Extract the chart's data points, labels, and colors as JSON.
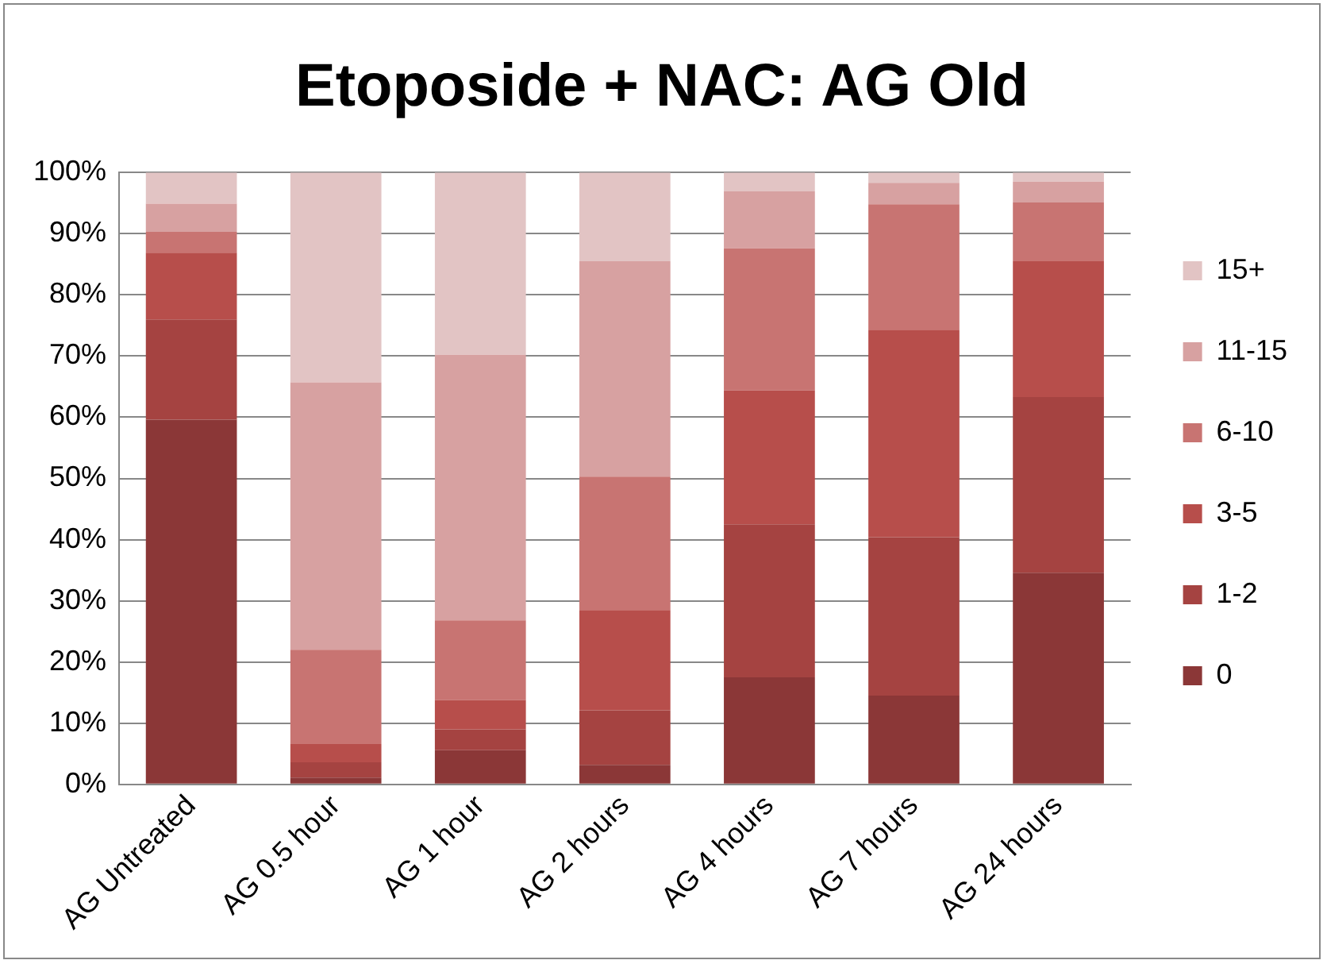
{
  "chart_data": {
    "type": "bar",
    "title": "Etoposide + NAC: AG Old",
    "stacked": true,
    "categories": [
      "AG Untreated",
      "AG 0.5 hour",
      "AG 1 hour",
      "AG 2 hours",
      "AG 4 hours",
      "AG 7 hours",
      "AG 24 hours"
    ],
    "series": [
      {
        "name": "0",
        "color": "#8b3737",
        "values": [
          59.6,
          1.1,
          5.6,
          3.2,
          17.5,
          14.5,
          34.6
        ]
      },
      {
        "name": "1-2",
        "color": "#a54341",
        "values": [
          16.4,
          2.5,
          3.4,
          8.9,
          25.0,
          25.9,
          28.7
        ]
      },
      {
        "name": "3-5",
        "color": "#b74e4b",
        "values": [
          10.9,
          3.0,
          4.8,
          16.4,
          21.9,
          33.9,
          22.2
        ]
      },
      {
        "name": "6-10",
        "color": "#c87472",
        "values": [
          3.4,
          15.4,
          13.0,
          21.8,
          23.2,
          20.5,
          9.6
        ]
      },
      {
        "name": "11-15",
        "color": "#d7a1a1",
        "values": [
          4.6,
          43.7,
          43.4,
          35.2,
          9.3,
          3.5,
          3.4
        ]
      },
      {
        "name": "15+",
        "color": "#e2c4c4",
        "values": [
          5.1,
          34.3,
          29.8,
          14.5,
          3.1,
          1.7,
          1.5
        ]
      }
    ],
    "ylim": [
      0,
      100
    ],
    "yticks": [
      {
        "value": 0,
        "label": "0%"
      },
      {
        "value": 10,
        "label": "10%"
      },
      {
        "value": 20,
        "label": "20%"
      },
      {
        "value": 30,
        "label": "30%"
      },
      {
        "value": 40,
        "label": "40%"
      },
      {
        "value": 50,
        "label": "50%"
      },
      {
        "value": 60,
        "label": "60%"
      },
      {
        "value": 70,
        "label": "70%"
      },
      {
        "value": 80,
        "label": "80%"
      },
      {
        "value": 90,
        "label": "90%"
      },
      {
        "value": 100,
        "label": "100%"
      }
    ],
    "grid": "y",
    "legend": "right"
  }
}
